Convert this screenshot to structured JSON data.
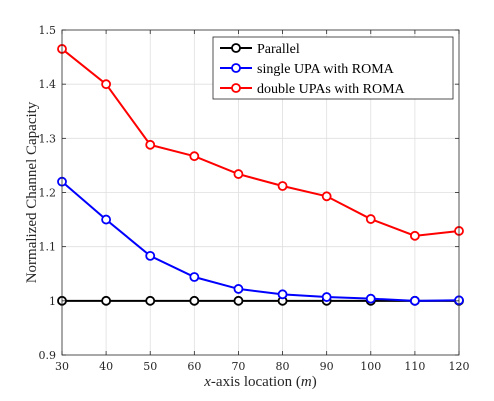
{
  "chart_data": {
    "type": "line",
    "xlabel_italic": "x",
    "xlabel_rest": "-axis location (",
    "xlabel_unit": "m",
    "xlabel_close": ")",
    "ylabel": "Normalized Channel Capacity",
    "xlim": [
      30,
      120
    ],
    "ylim": [
      0.9,
      1.5
    ],
    "x": [
      30,
      40,
      50,
      60,
      70,
      80,
      90,
      100,
      110,
      120
    ],
    "xticks": [
      "30",
      "40",
      "50",
      "60",
      "70",
      "80",
      "90",
      "100",
      "110",
      "120"
    ],
    "yticks": [
      "0.9",
      "1",
      "1.1",
      "1.2",
      "1.3",
      "1.4",
      "1.5"
    ],
    "ytick_values": [
      0.9,
      1.0,
      1.1,
      1.2,
      1.3,
      1.4,
      1.5
    ],
    "grid": true,
    "legend_position": "top-right",
    "series": [
      {
        "name": "Parallel",
        "color": "#000000",
        "marker": "circle",
        "values": [
          1.0,
          1.0,
          1.0,
          1.0,
          1.0,
          1.0,
          1.0,
          1.0,
          1.0,
          1.0
        ]
      },
      {
        "name": "single UPA with ROMA",
        "color": "#0000ff",
        "marker": "circle",
        "values": [
          1.22,
          1.15,
          1.083,
          1.044,
          1.022,
          1.012,
          1.007,
          1.004,
          1.0,
          1.001
        ]
      },
      {
        "name": "double UPAs with ROMA",
        "color": "#ff0000",
        "marker": "circle",
        "values": [
          1.465,
          1.4,
          1.288,
          1.267,
          1.234,
          1.212,
          1.193,
          1.151,
          1.12,
          1.129
        ]
      }
    ]
  }
}
